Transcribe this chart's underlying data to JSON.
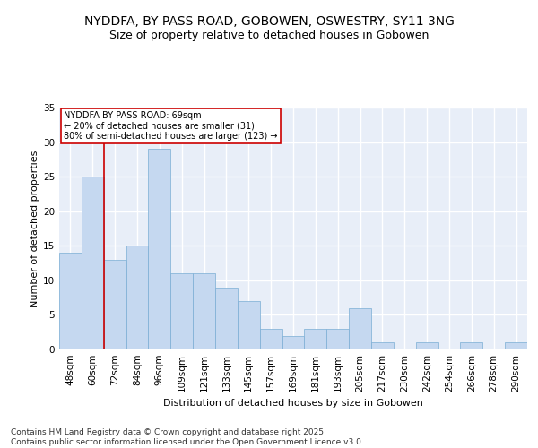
{
  "title_line1": "NYDDFA, BY PASS ROAD, GOBOWEN, OSWESTRY, SY11 3NG",
  "title_line2": "Size of property relative to detached houses in Gobowen",
  "xlabel": "Distribution of detached houses by size in Gobowen",
  "ylabel": "Number of detached properties",
  "categories": [
    "48sqm",
    "60sqm",
    "72sqm",
    "84sqm",
    "96sqm",
    "109sqm",
    "121sqm",
    "133sqm",
    "145sqm",
    "157sqm",
    "169sqm",
    "181sqm",
    "193sqm",
    "205sqm",
    "217sqm",
    "230sqm",
    "242sqm",
    "254sqm",
    "266sqm",
    "278sqm",
    "290sqm"
  ],
  "values": [
    14,
    25,
    13,
    15,
    29,
    11,
    11,
    9,
    7,
    3,
    2,
    3,
    3,
    6,
    1,
    0,
    1,
    0,
    1,
    0,
    1
  ],
  "bar_color": "#c5d8f0",
  "bar_edge_color": "#7aadd4",
  "background_color": "#e8eef8",
  "grid_color": "#ffffff",
  "annotation_text": "NYDDFA BY PASS ROAD: 69sqm\n← 20% of detached houses are smaller (31)\n80% of semi-detached houses are larger (123) →",
  "vline_position": 1.5,
  "vline_color": "#cc0000",
  "box_color": "#cc0000",
  "ylim": [
    0,
    35
  ],
  "yticks": [
    0,
    5,
    10,
    15,
    20,
    25,
    30,
    35
  ],
  "footer_text": "Contains HM Land Registry data © Crown copyright and database right 2025.\nContains public sector information licensed under the Open Government Licence v3.0.",
  "title_fontsize": 10,
  "subtitle_fontsize": 9,
  "axis_fontsize": 8,
  "tick_fontsize": 7.5,
  "footer_fontsize": 6.5
}
